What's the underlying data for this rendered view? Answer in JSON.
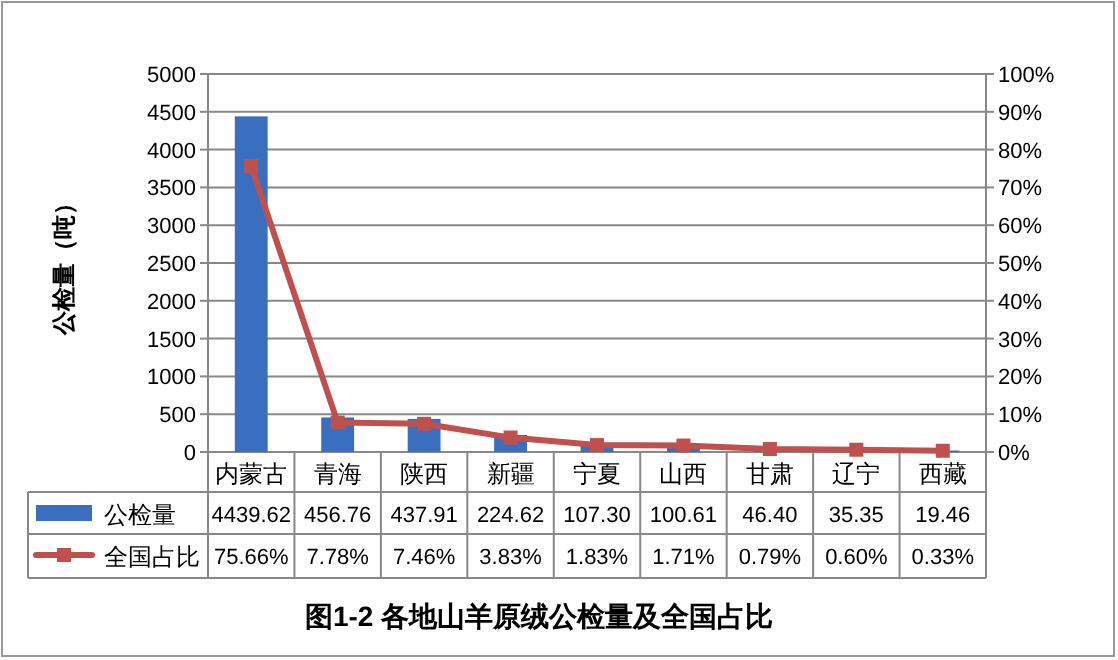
{
  "chart_data": {
    "type": "bar",
    "title": "图1-2  各地山羊原绒公检量及全国占比",
    "ylabel": "公检量（吨）",
    "categories": [
      "内蒙古",
      "青海",
      "陕西",
      "新疆",
      "宁夏",
      "山西",
      "甘肃",
      "辽宁",
      "西藏"
    ],
    "series": [
      {
        "name": "公检量",
        "color": "#3a6fbf",
        "values": [
          4439.62,
          456.76,
          437.91,
          224.62,
          107.3,
          100.61,
          46.4,
          35.35,
          19.46
        ],
        "value_labels": [
          "4439.62",
          "456.76",
          "437.91",
          "224.62",
          "107.30",
          "100.61",
          "46.40",
          "35.35",
          "19.46"
        ]
      },
      {
        "name": "全国占比",
        "type": "line",
        "axis": "y2",
        "color": "#c0504d",
        "marker": "square",
        "values": [
          75.66,
          7.78,
          7.46,
          3.83,
          1.83,
          1.71,
          0.79,
          0.6,
          0.33
        ],
        "value_labels": [
          "75.66%",
          "7.78%",
          "7.46%",
          "3.83%",
          "1.83%",
          "1.71%",
          "0.79%",
          "0.60%",
          "0.33%"
        ]
      }
    ],
    "ylim": [
      0,
      5000
    ],
    "yticks": [
      0,
      500,
      1000,
      1500,
      2000,
      2500,
      3000,
      3500,
      4000,
      4500,
      5000
    ],
    "y2lim": [
      0,
      100
    ],
    "y2ticks": [
      {
        "value": 0,
        "label": "0%"
      },
      {
        "value": 10,
        "label": "10%"
      },
      {
        "value": 20,
        "label": "20%"
      },
      {
        "value": 30,
        "label": "30%"
      },
      {
        "value": 40,
        "label": "40%"
      },
      {
        "value": 50,
        "label": "50%"
      },
      {
        "value": 60,
        "label": "60%"
      },
      {
        "value": 70,
        "label": "70%"
      },
      {
        "value": 80,
        "label": "80%"
      },
      {
        "value": 90,
        "label": "90%"
      },
      {
        "value": 100,
        "label": "100%"
      }
    ],
    "grid": "y",
    "legend": "bottom"
  }
}
